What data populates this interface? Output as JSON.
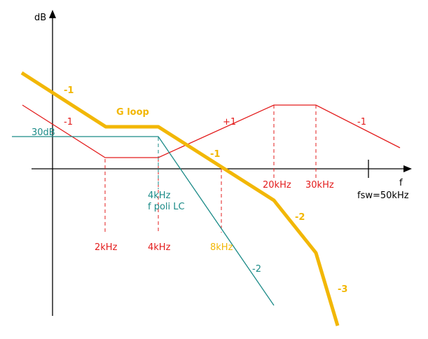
{
  "axes": {
    "y_label": "dB",
    "x_label": "f",
    "fsw_label": "fsw=50kHz"
  },
  "labels": {
    "gloop_name": "G loop",
    "gloop_slope_start": "-1",
    "gloop_slope_mid": "-1",
    "gloop_slope_after_20k": "-2",
    "gloop_slope_end": "-3",
    "comp_slope_start": "-1",
    "comp_slope_rise": "+1",
    "comp_slope_end": "-1",
    "plant_level": "30dB",
    "plant_slope": "-2",
    "plant_corner_line1": "4kHz",
    "plant_corner_line2": "f poli LC",
    "freq_2k": "2kHz",
    "freq_4k": "4kHz",
    "freq_8k": "8kHz",
    "freq_20k": "20kHz",
    "freq_30k": "30kHz"
  },
  "colors": {
    "gloop": "#f2b705",
    "compensator": "#e31c1c",
    "plant": "#1a8a87",
    "axes": "#000000"
  }
}
